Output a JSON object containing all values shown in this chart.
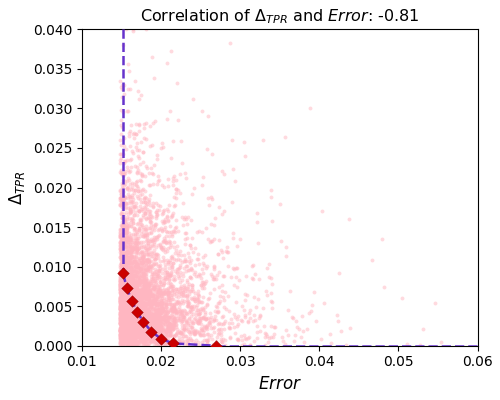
{
  "title_part1": "Correlation of ",
  "title_part2": ": -0.81",
  "xlabel": "Error",
  "ylabel": "delta_TPR",
  "xlim": [
    0.01,
    0.06
  ],
  "ylim": [
    0.0,
    0.04
  ],
  "xticks": [
    0.01,
    0.02,
    0.03,
    0.04,
    0.05,
    0.06
  ],
  "yticks": [
    0.0,
    0.005,
    0.01,
    0.015,
    0.02,
    0.025,
    0.03,
    0.035,
    0.04
  ],
  "scatter_color": "#FFB6C1",
  "scatter_alpha": 0.5,
  "scatter_size": 8,
  "n_scatter": 5000,
  "pareto_color": "#CC0000",
  "pareto_size": 35,
  "dashed_color": "#6633CC",
  "seed": 42,
  "pareto_x": [
    0.0152,
    0.0157,
    0.0163,
    0.017,
    0.0178,
    0.0188,
    0.02,
    0.0215,
    0.027
  ],
  "pareto_y": [
    0.0092,
    0.0073,
    0.0057,
    0.0043,
    0.003,
    0.0018,
    0.0009,
    0.0003,
    0.0
  ]
}
